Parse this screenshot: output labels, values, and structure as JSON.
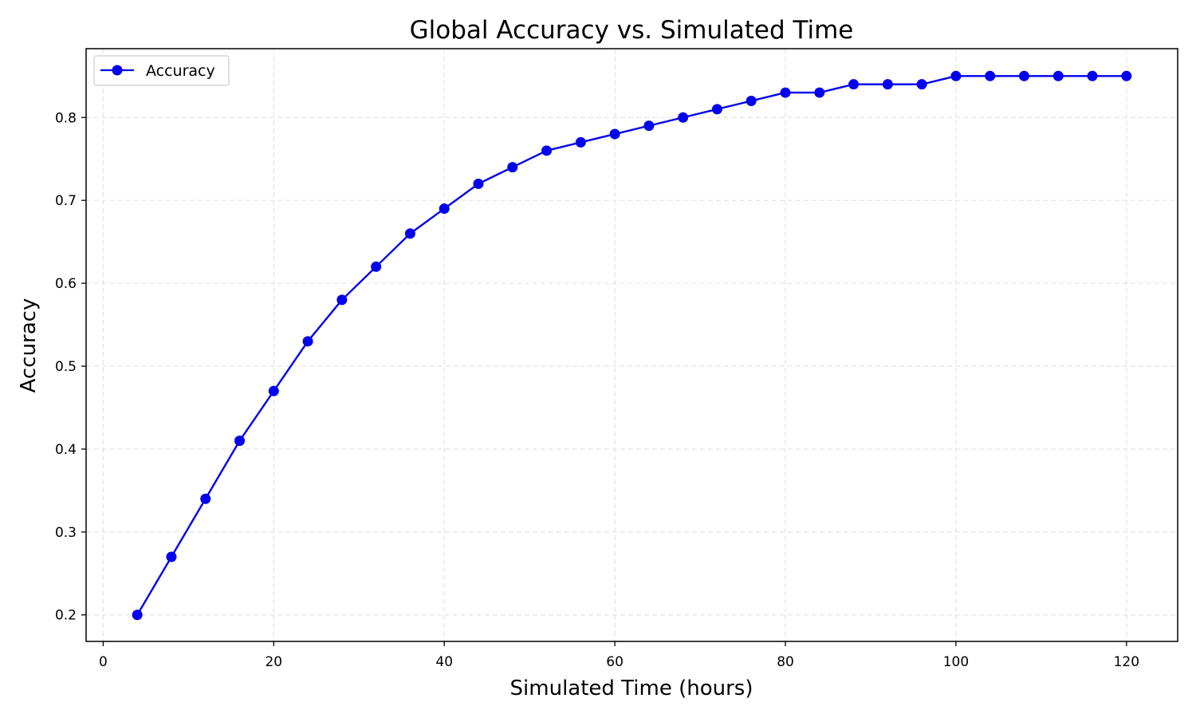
{
  "chart_data": {
    "type": "line",
    "title": "Global Accuracy vs. Simulated Time",
    "xlabel": "Simulated Time (hours)",
    "ylabel": "Accuracy",
    "xlim": [
      -2,
      126
    ],
    "ylim": [
      0.168,
      0.883
    ],
    "xticks": [
      0,
      20,
      40,
      60,
      80,
      100,
      120
    ],
    "yticks": [
      0.2,
      0.3,
      0.4,
      0.5,
      0.6,
      0.7,
      0.8
    ],
    "grid": true,
    "legend_position": "top-left",
    "series": [
      {
        "name": "Accuracy",
        "color": "#0000ee",
        "marker": "circle",
        "x": [
          4,
          8,
          12,
          16,
          20,
          24,
          28,
          32,
          36,
          40,
          44,
          48,
          52,
          56,
          60,
          64,
          68,
          72,
          76,
          80,
          84,
          88,
          92,
          96,
          100,
          104,
          108,
          112,
          116,
          120
        ],
        "y": [
          0.2,
          0.27,
          0.34,
          0.41,
          0.47,
          0.53,
          0.58,
          0.62,
          0.66,
          0.69,
          0.72,
          0.74,
          0.76,
          0.77,
          0.78,
          0.79,
          0.8,
          0.81,
          0.82,
          0.83,
          0.83,
          0.84,
          0.84,
          0.84,
          0.85,
          0.85,
          0.85,
          0.85,
          0.85,
          0.85
        ]
      }
    ]
  }
}
